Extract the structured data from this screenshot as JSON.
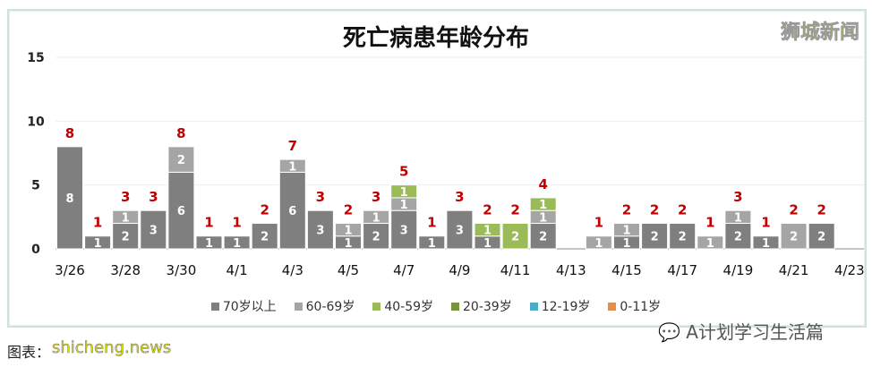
{
  "chart_data": {
    "type": "bar",
    "stacked": true,
    "title": "死亡病患年龄分布",
    "categories": [
      "3/26",
      "3/27",
      "3/28",
      "3/29",
      "3/30",
      "3/31",
      "4/1",
      "4/2",
      "4/3",
      "4/4",
      "4/5",
      "4/6",
      "4/7",
      "4/8",
      "4/9",
      "4/10",
      "4/11",
      "4/12",
      "4/13",
      "4/14",
      "4/15",
      "4/16",
      "4/17",
      "4/18",
      "4/19",
      "4/20",
      "4/21",
      "4/22",
      "4/23"
    ],
    "tick_labels": [
      "3/26",
      "3/28",
      "3/30",
      "4/1",
      "4/3",
      "4/5",
      "4/7",
      "4/9",
      "4/11",
      "4/13",
      "4/15",
      "4/17",
      "4/19",
      "4/21",
      "4/23"
    ],
    "series": [
      {
        "name": "70岁以上",
        "color": "#7f7f7f",
        "values": [
          8,
          1,
          2,
          3,
          6,
          1,
          1,
          2,
          6,
          3,
          1,
          2,
          3,
          1,
          3,
          1,
          0,
          2,
          0,
          0,
          1,
          2,
          2,
          0,
          2,
          1,
          0,
          2,
          0
        ]
      },
      {
        "name": "60-69岁",
        "color": "#a5a5a5",
        "values": [
          0,
          0,
          1,
          0,
          2,
          0,
          0,
          0,
          1,
          0,
          1,
          1,
          1,
          0,
          0,
          0,
          0,
          1,
          0,
          1,
          1,
          0,
          0,
          1,
          1,
          0,
          2,
          0,
          0
        ]
      },
      {
        "name": "40-59岁",
        "color": "#9bbb59",
        "values": [
          0,
          0,
          0,
          0,
          0,
          0,
          0,
          0,
          0,
          0,
          0,
          0,
          1,
          0,
          0,
          1,
          2,
          1,
          0,
          0,
          0,
          0,
          0,
          0,
          0,
          0,
          0,
          0,
          0
        ]
      },
      {
        "name": "20-39岁",
        "color": "#77933c",
        "values": [
          0,
          0,
          0,
          0,
          0,
          0,
          0,
          0,
          0,
          0,
          0,
          0,
          0,
          0,
          0,
          0,
          0,
          0,
          0,
          0,
          0,
          0,
          0,
          0,
          0,
          0,
          0,
          0,
          0
        ]
      },
      {
        "name": "12-19岁",
        "color": "#4bacc6",
        "values": [
          0,
          0,
          0,
          0,
          0,
          0,
          0,
          0,
          0,
          0,
          0,
          0,
          0,
          0,
          0,
          0,
          0,
          0,
          0,
          0,
          0,
          0,
          0,
          0,
          0,
          0,
          0,
          0,
          0
        ]
      },
      {
        "name": "0-11岁",
        "color": "#e0904a",
        "values": [
          0,
          0,
          0,
          0,
          0,
          0,
          0,
          0,
          0,
          0,
          0,
          0,
          0,
          0,
          0,
          0,
          0,
          0,
          0,
          0,
          0,
          0,
          0,
          0,
          0,
          0,
          0,
          0,
          0
        ]
      }
    ],
    "totals_color": "#c00000",
    "ylim": [
      0,
      15
    ],
    "yticks": [
      0,
      5,
      10,
      15
    ],
    "grid": true,
    "legend": "bottom"
  },
  "watermarks": {
    "brand": "狮城新闻",
    "site": "shicheng.news",
    "credit": "图表：",
    "account": "A计划学习生活篇"
  }
}
